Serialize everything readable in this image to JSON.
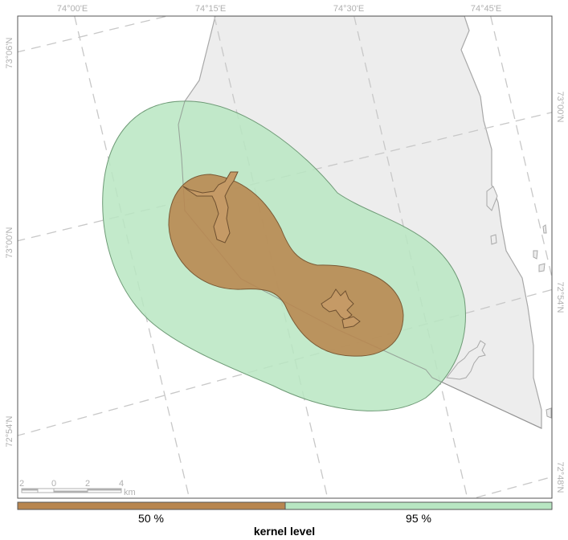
{
  "map": {
    "graticule": {
      "longitude_labels": [
        "74°00'E",
        "74°15'E",
        "74°30'E",
        "74°45'E"
      ],
      "latitude_labels_left": [
        "73°06'N",
        "73°00'N",
        "72°54'N"
      ],
      "latitude_labels_right": [
        "73°00'N",
        "72°54'N",
        "72°48'N"
      ]
    },
    "scale_bar": {
      "labels": [
        "2",
        "0",
        "2",
        "4"
      ],
      "unit": "km"
    },
    "colors": {
      "land": "#ededed",
      "land_outline": "#a8a8a8",
      "kernel_95": "#b8e6c2",
      "kernel_50": "#b8864f",
      "graticule": "#c8c8c8"
    }
  },
  "legend": {
    "title": "kernel level",
    "items": [
      {
        "label": "50 %",
        "color": "#b8864f"
      },
      {
        "label": "95 %",
        "color": "#b8e6c2"
      }
    ]
  }
}
